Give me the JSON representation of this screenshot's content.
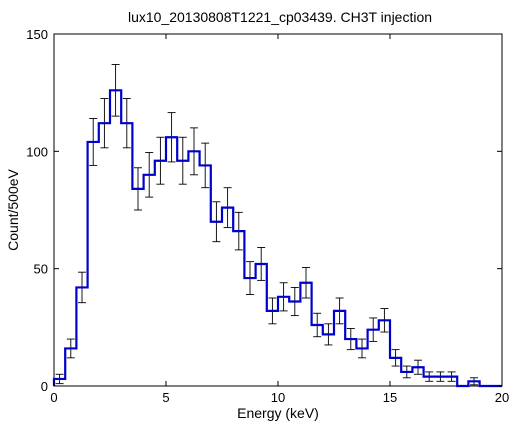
{
  "chart_data": {
    "type": "histogram",
    "title": "lux10_20130808T1221_cp03439. CH3T injection",
    "xlabel": "Energy (keV)",
    "ylabel": "Count/500eV",
    "xlim": [
      0,
      20
    ],
    "ylim": [
      0,
      150
    ],
    "xticks": [
      "0",
      "5",
      "10",
      "15",
      "20"
    ],
    "yticks": [
      "0",
      "50",
      "100",
      "150"
    ],
    "bin_width_kev": 0.5,
    "bin_edges_start": 0,
    "counts": [
      3,
      16,
      42,
      104,
      112,
      126,
      112,
      84,
      90,
      96,
      106,
      96,
      100,
      94,
      70,
      76,
      66,
      46,
      52,
      32,
      38,
      36,
      44,
      26,
      22,
      32,
      20,
      16,
      24,
      28,
      12,
      6,
      8,
      4,
      4,
      4,
      0,
      2,
      0,
      0
    ],
    "errors": [
      2,
      4,
      6.5,
      10,
      10.5,
      11,
      10.5,
      9,
      9.5,
      10,
      10.5,
      10,
      10,
      9.5,
      8.5,
      8.5,
      8,
      7,
      7,
      5.5,
      6,
      6,
      6.5,
      5,
      4.5,
      5.5,
      4.5,
      4,
      5,
      5,
      3.5,
      2.5,
      3,
      2,
      2,
      2,
      0,
      1.5,
      0,
      0
    ],
    "grid": false,
    "colors": {
      "histogram": "#0000cc",
      "errorbars": "#000000"
    }
  }
}
